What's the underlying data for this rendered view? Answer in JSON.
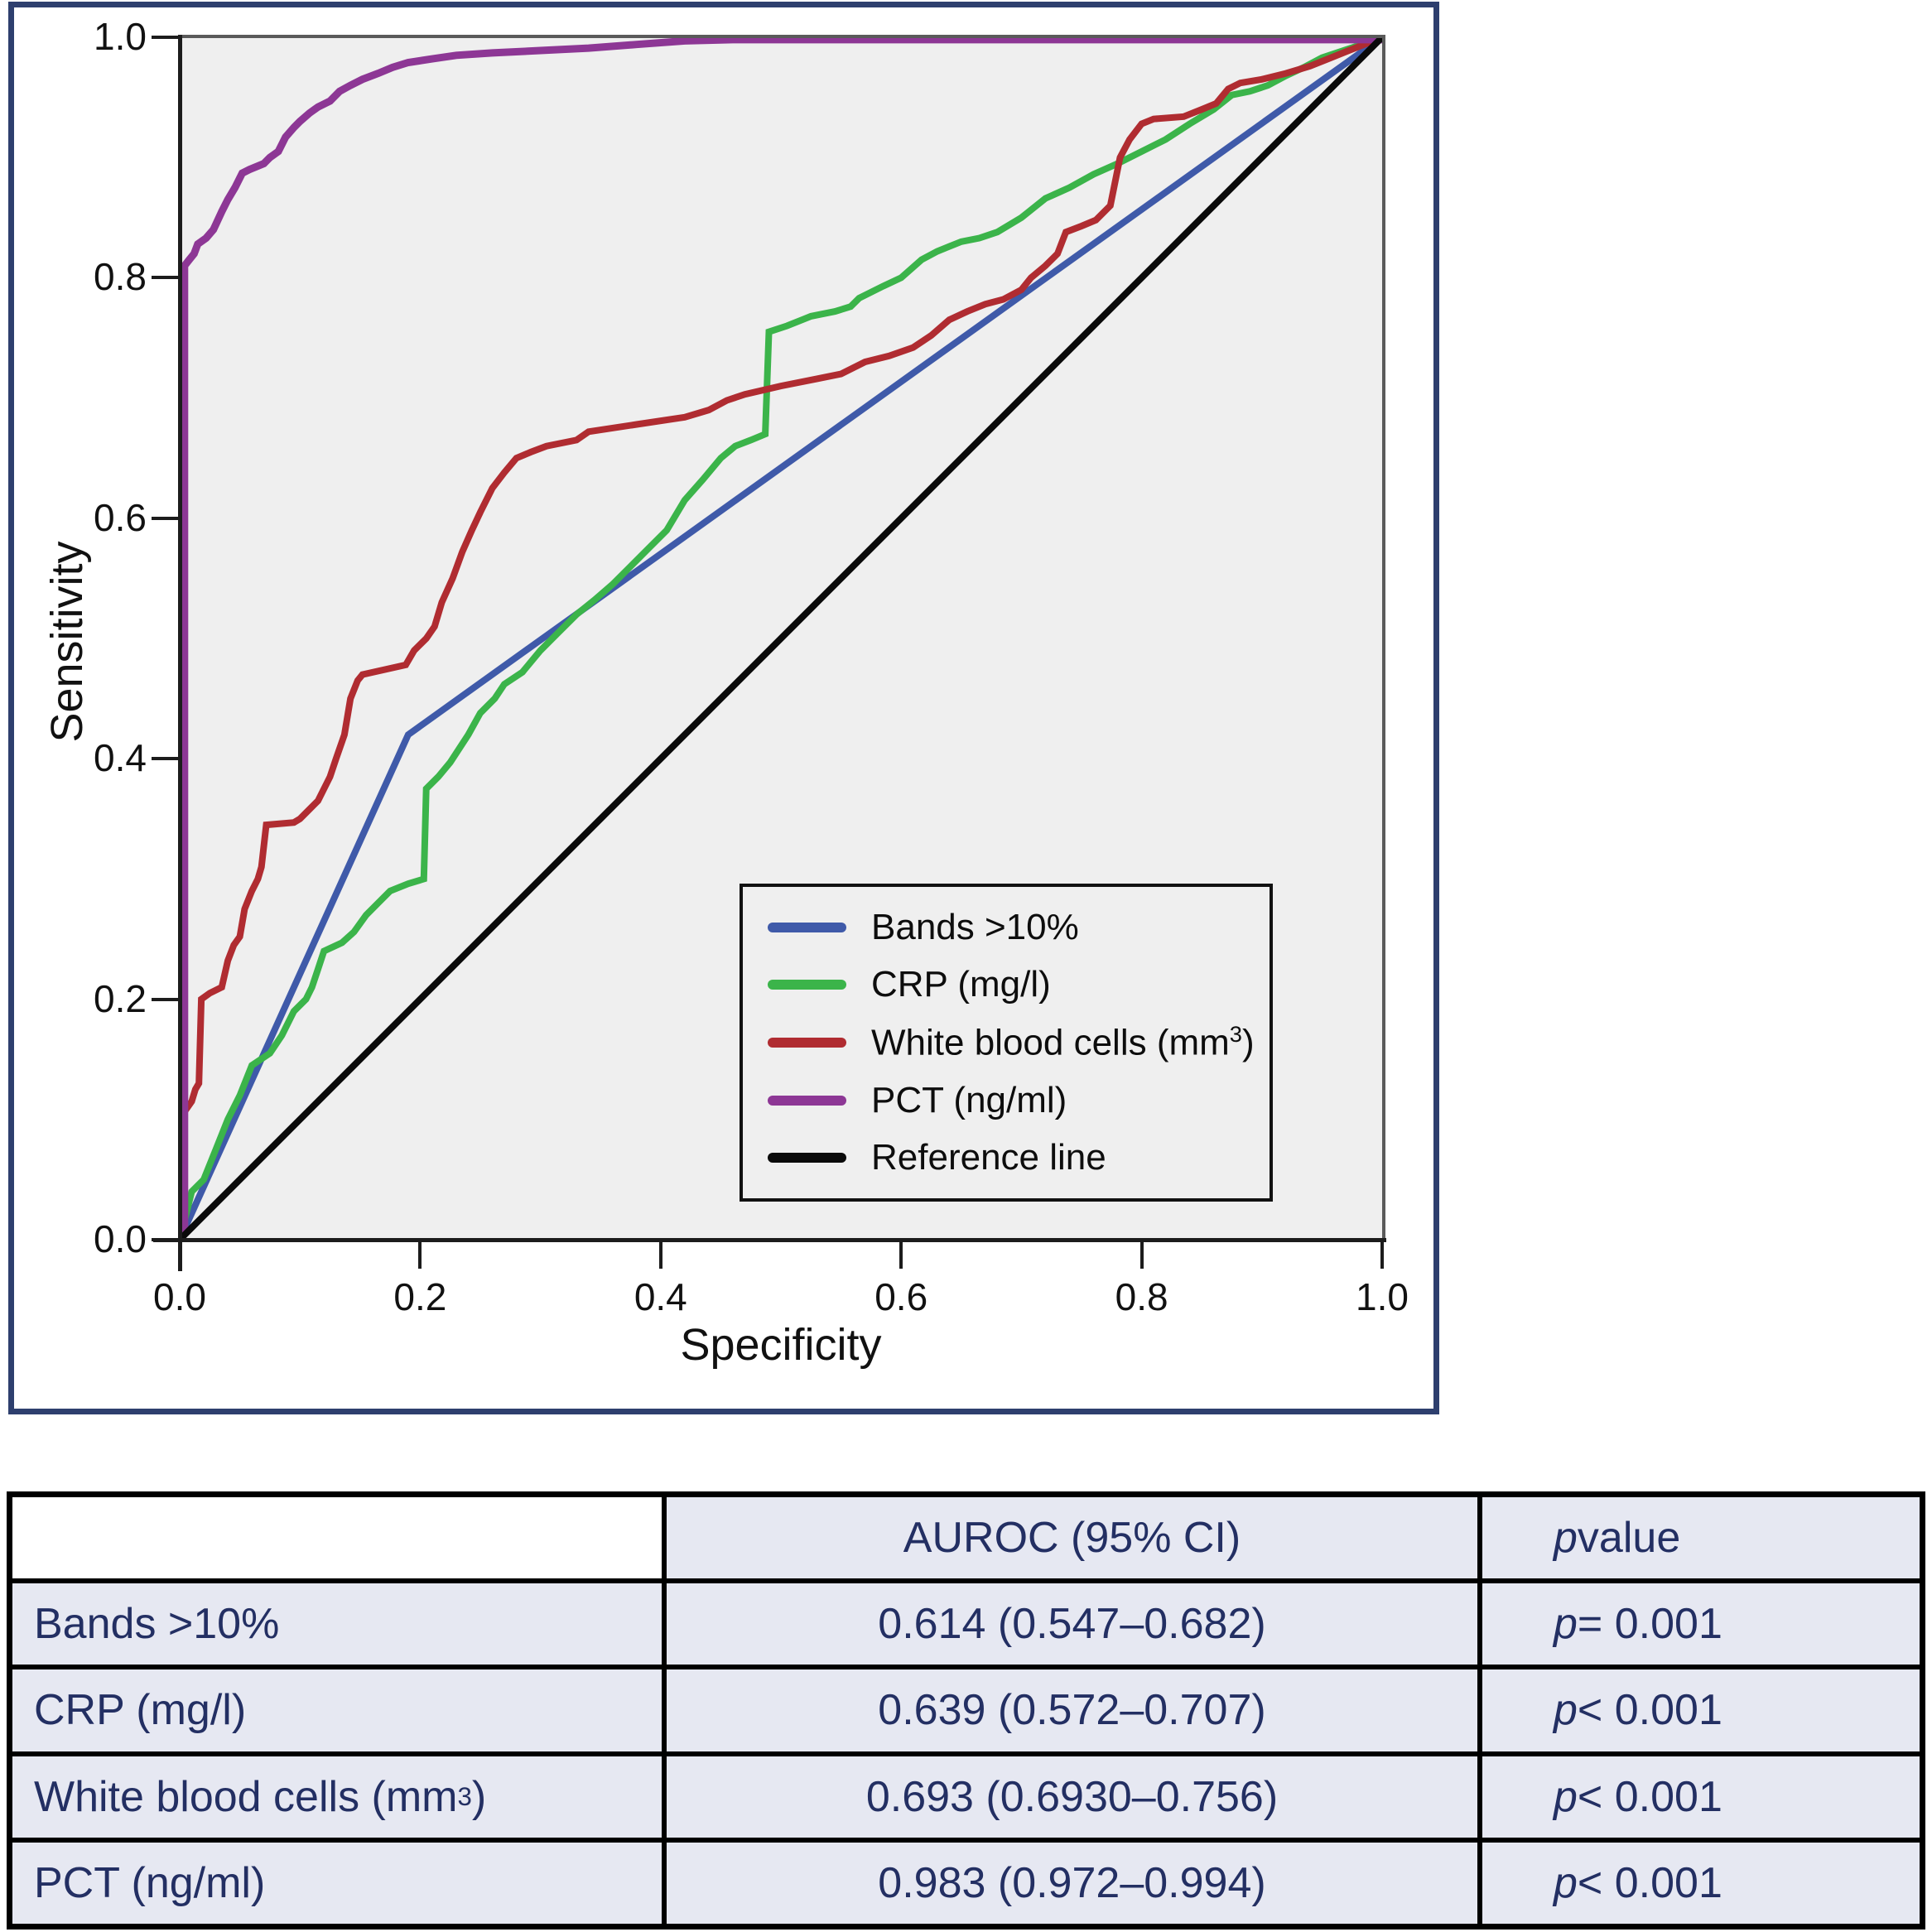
{
  "chart": {
    "x_axis_label": "Specificity",
    "y_axis_label": "Sensitivity",
    "x_ticks": [
      "0.0",
      "0.2",
      "0.4",
      "0.6",
      "0.8",
      "1.0"
    ],
    "y_ticks": [
      "0.0",
      "0.2",
      "0.4",
      "0.6",
      "0.8",
      "1.0"
    ],
    "plot_bg_color": "#efefef",
    "figure_border_color": "#2e3f6e",
    "legend": {
      "entries": [
        {
          "id": "bands",
          "label_pre": "Bands >10%",
          "label_sup": "",
          "label_post": "",
          "color": "#3f5aa9"
        },
        {
          "id": "crp",
          "label_pre": "CRP (mg/l)",
          "label_sup": "",
          "label_post": "",
          "color": "#3bb44a"
        },
        {
          "id": "wbc",
          "label_pre": "White blood cells (mm",
          "label_sup": "3",
          "label_post": ")",
          "color": "#b02c31"
        },
        {
          "id": "pct",
          "label_pre": "PCT (ng/ml)",
          "label_sup": "",
          "label_post": "",
          "color": "#8d3795"
        },
        {
          "id": "reference",
          "label_pre": "Reference line",
          "label_sup": "",
          "label_post": "",
          "color": "#0a0a0a"
        }
      ]
    }
  },
  "chart_data": {
    "type": "line",
    "title": "",
    "xlabel": "Specificity",
    "ylabel": "Sensitivity",
    "xlim": [
      0,
      1
    ],
    "ylim": [
      0,
      1
    ],
    "grid": false,
    "legend_position": "lower right inside plot",
    "series": [
      {
        "name": "Bands >10%",
        "id": "bands",
        "color": "#3f5aa9",
        "width": 8,
        "points": [
          [
            0,
            0
          ],
          [
            0.19,
            0.42
          ],
          [
            1,
            1
          ]
        ]
      },
      {
        "name": "CRP (mg/l)",
        "id": "crp",
        "color": "#3bb44a",
        "width": 8,
        "points": [
          [
            0,
            0
          ],
          [
            0.005,
            0.02
          ],
          [
            0.01,
            0.04
          ],
          [
            0.02,
            0.05
          ],
          [
            0.03,
            0.075
          ],
          [
            0.04,
            0.1
          ],
          [
            0.05,
            0.12
          ],
          [
            0.06,
            0.145
          ],
          [
            0.075,
            0.155
          ],
          [
            0.085,
            0.17
          ],
          [
            0.095,
            0.19
          ],
          [
            0.105,
            0.2
          ],
          [
            0.11,
            0.21
          ],
          [
            0.115,
            0.225
          ],
          [
            0.12,
            0.24
          ],
          [
            0.135,
            0.247
          ],
          [
            0.145,
            0.256
          ],
          [
            0.155,
            0.27
          ],
          [
            0.165,
            0.28
          ],
          [
            0.175,
            0.29
          ],
          [
            0.19,
            0.296
          ],
          [
            0.203,
            0.3
          ],
          [
            0.205,
            0.375
          ],
          [
            0.215,
            0.385
          ],
          [
            0.225,
            0.397
          ],
          [
            0.24,
            0.42
          ],
          [
            0.25,
            0.438
          ],
          [
            0.262,
            0.45
          ],
          [
            0.27,
            0.462
          ],
          [
            0.285,
            0.472
          ],
          [
            0.3,
            0.49
          ],
          [
            0.315,
            0.505
          ],
          [
            0.33,
            0.52
          ],
          [
            0.345,
            0.532
          ],
          [
            0.36,
            0.545
          ],
          [
            0.375,
            0.56
          ],
          [
            0.39,
            0.575
          ],
          [
            0.405,
            0.59
          ],
          [
            0.42,
            0.615
          ],
          [
            0.435,
            0.632
          ],
          [
            0.45,
            0.65
          ],
          [
            0.462,
            0.66
          ],
          [
            0.475,
            0.665
          ],
          [
            0.487,
            0.67
          ],
          [
            0.49,
            0.755
          ],
          [
            0.505,
            0.76
          ],
          [
            0.525,
            0.768
          ],
          [
            0.545,
            0.772
          ],
          [
            0.558,
            0.776
          ],
          [
            0.565,
            0.783
          ],
          [
            0.585,
            0.793
          ],
          [
            0.6,
            0.8
          ],
          [
            0.617,
            0.815
          ],
          [
            0.63,
            0.822
          ],
          [
            0.65,
            0.83
          ],
          [
            0.665,
            0.833
          ],
          [
            0.68,
            0.838
          ],
          [
            0.7,
            0.85
          ],
          [
            0.72,
            0.866
          ],
          [
            0.74,
            0.875
          ],
          [
            0.76,
            0.886
          ],
          [
            0.78,
            0.895
          ],
          [
            0.8,
            0.905
          ],
          [
            0.82,
            0.915
          ],
          [
            0.84,
            0.928
          ],
          [
            0.86,
            0.94
          ],
          [
            0.875,
            0.952
          ],
          [
            0.89,
            0.955
          ],
          [
            0.905,
            0.96
          ],
          [
            0.92,
            0.968
          ],
          [
            0.935,
            0.975
          ],
          [
            0.95,
            0.983
          ],
          [
            0.965,
            0.988
          ],
          [
            0.98,
            0.993
          ],
          [
            1,
            1
          ]
        ]
      },
      {
        "name": "White blood cells (mm3)",
        "id": "wbc",
        "color": "#b02c31",
        "width": 8,
        "points": [
          [
            0,
            0
          ],
          [
            0.003,
            0.105
          ],
          [
            0.01,
            0.115
          ],
          [
            0.013,
            0.125
          ],
          [
            0.016,
            0.13
          ],
          [
            0.018,
            0.2
          ],
          [
            0.025,
            0.205
          ],
          [
            0.035,
            0.21
          ],
          [
            0.04,
            0.232
          ],
          [
            0.045,
            0.245
          ],
          [
            0.05,
            0.252
          ],
          [
            0.054,
            0.275
          ],
          [
            0.06,
            0.29
          ],
          [
            0.065,
            0.3
          ],
          [
            0.068,
            0.31
          ],
          [
            0.072,
            0.345
          ],
          [
            0.095,
            0.347
          ],
          [
            0.1,
            0.35
          ],
          [
            0.105,
            0.355
          ],
          [
            0.115,
            0.365
          ],
          [
            0.125,
            0.385
          ],
          [
            0.13,
            0.4
          ],
          [
            0.137,
            0.42
          ],
          [
            0.142,
            0.45
          ],
          [
            0.148,
            0.465
          ],
          [
            0.152,
            0.47
          ],
          [
            0.188,
            0.478
          ],
          [
            0.195,
            0.49
          ],
          [
            0.205,
            0.5
          ],
          [
            0.212,
            0.51
          ],
          [
            0.218,
            0.53
          ],
          [
            0.227,
            0.55
          ],
          [
            0.235,
            0.572
          ],
          [
            0.243,
            0.59
          ],
          [
            0.25,
            0.605
          ],
          [
            0.26,
            0.625
          ],
          [
            0.27,
            0.638
          ],
          [
            0.28,
            0.65
          ],
          [
            0.292,
            0.655
          ],
          [
            0.305,
            0.66
          ],
          [
            0.33,
            0.665
          ],
          [
            0.34,
            0.672
          ],
          [
            0.38,
            0.678
          ],
          [
            0.42,
            0.684
          ],
          [
            0.44,
            0.69
          ],
          [
            0.455,
            0.698
          ],
          [
            0.47,
            0.703
          ],
          [
            0.5,
            0.71
          ],
          [
            0.53,
            0.716
          ],
          [
            0.55,
            0.72
          ],
          [
            0.57,
            0.73
          ],
          [
            0.59,
            0.735
          ],
          [
            0.61,
            0.742
          ],
          [
            0.625,
            0.752
          ],
          [
            0.64,
            0.765
          ],
          [
            0.655,
            0.772
          ],
          [
            0.67,
            0.778
          ],
          [
            0.685,
            0.782
          ],
          [
            0.7,
            0.79
          ],
          [
            0.708,
            0.8
          ],
          [
            0.72,
            0.81
          ],
          [
            0.73,
            0.82
          ],
          [
            0.737,
            0.838
          ],
          [
            0.75,
            0.843
          ],
          [
            0.762,
            0.848
          ],
          [
            0.774,
            0.86
          ],
          [
            0.782,
            0.9
          ],
          [
            0.79,
            0.915
          ],
          [
            0.8,
            0.928
          ],
          [
            0.81,
            0.932
          ],
          [
            0.835,
            0.934
          ],
          [
            0.85,
            0.94
          ],
          [
            0.862,
            0.945
          ],
          [
            0.872,
            0.957
          ],
          [
            0.882,
            0.962
          ],
          [
            0.9,
            0.965
          ],
          [
            0.92,
            0.97
          ],
          [
            0.94,
            0.976
          ],
          [
            0.955,
            0.982
          ],
          [
            0.97,
            0.988
          ],
          [
            1,
            1
          ]
        ]
      },
      {
        "name": "PCT (ng/ml)",
        "id": "pct",
        "color": "#8d3795",
        "width": 9,
        "points": [
          [
            0,
            0
          ],
          [
            0.004,
            0.005
          ],
          [
            0.004,
            0.81
          ],
          [
            0.008,
            0.815
          ],
          [
            0.012,
            0.82
          ],
          [
            0.015,
            0.828
          ],
          [
            0.022,
            0.833
          ],
          [
            0.028,
            0.84
          ],
          [
            0.035,
            0.855
          ],
          [
            0.04,
            0.865
          ],
          [
            0.046,
            0.875
          ],
          [
            0.052,
            0.887
          ],
          [
            0.058,
            0.89
          ],
          [
            0.07,
            0.895
          ],
          [
            0.075,
            0.9
          ],
          [
            0.082,
            0.905
          ],
          [
            0.088,
            0.917
          ],
          [
            0.095,
            0.925
          ],
          [
            0.1,
            0.93
          ],
          [
            0.108,
            0.937
          ],
          [
            0.115,
            0.942
          ],
          [
            0.125,
            0.947
          ],
          [
            0.133,
            0.955
          ],
          [
            0.142,
            0.96
          ],
          [
            0.152,
            0.965
          ],
          [
            0.165,
            0.97
          ],
          [
            0.177,
            0.975
          ],
          [
            0.19,
            0.979
          ],
          [
            0.21,
            0.982
          ],
          [
            0.23,
            0.985
          ],
          [
            0.26,
            0.987
          ],
          [
            0.3,
            0.989
          ],
          [
            0.34,
            0.991
          ],
          [
            0.38,
            0.994
          ],
          [
            0.42,
            0.997
          ],
          [
            0.46,
            0.998
          ],
          [
            1,
            0.998
          ]
        ]
      },
      {
        "name": "Reference line",
        "id": "reference",
        "color": "#0a0a0a",
        "width": 8,
        "points": [
          [
            0,
            0
          ],
          [
            1,
            1
          ]
        ]
      }
    ]
  },
  "table": {
    "headers": {
      "metric": "",
      "auroc": "AUROC (95% CI)",
      "p_symbol": "p",
      "p_rest": " value"
    },
    "rows": [
      {
        "label_pre": "Bands >10%",
        "label_sup": "",
        "label_post": "",
        "auroc": "0.614 (0.547–0.682)",
        "p_symbol": "p",
        "p_rest": " = 0.001"
      },
      {
        "label_pre": "CRP (mg/l)",
        "label_sup": "",
        "label_post": "",
        "auroc": "0.639 (0.572–0.707)",
        "p_symbol": "p",
        "p_rest": " < 0.001"
      },
      {
        "label_pre": "White blood cells (mm",
        "label_sup": "3",
        "label_post": ")",
        "auroc": "0.693 (0.6930–0.756)",
        "p_symbol": "p",
        "p_rest": " < 0.001"
      },
      {
        "label_pre": "PCT (ng/ml)",
        "label_sup": "",
        "label_post": "",
        "auroc": "0.983 (0.972–0.994)",
        "p_symbol": "p",
        "p_rest": " < 0.001"
      }
    ]
  }
}
